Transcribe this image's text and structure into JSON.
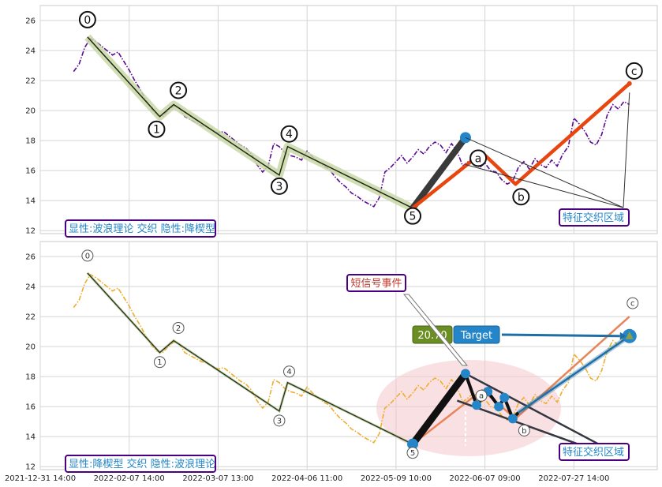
{
  "colors": {
    "panel1_price": "#5b0a91",
    "panel2_price": "#f0ad2d",
    "wave_fill": "#c9d7a8",
    "wave_line": "#1f2a10",
    "projection": "#e8450f",
    "impulse": "#3a3a3a",
    "pivot_dot": "#2486c8",
    "label_border": "#4b0082",
    "label_text_blue": "#2486c8",
    "label_text_red": "#c0392b",
    "target_value_bg": "#6b8e23",
    "target_bg": "#2486c8",
    "ellipse": "#f4c7cc"
  },
  "x_ticks": [
    "2021-12-31 14:00",
    "2022-02-07 14:00",
    "2022-03-07 13:00",
    "2022-04-06 11:00",
    "2022-05-09 10:00",
    "2022-06-07 09:00",
    "2022-07-27 14:00"
  ],
  "y_ticks": [
    "12",
    "14",
    "16",
    "18",
    "20",
    "22",
    "24",
    "26"
  ],
  "panel1": {
    "caption": "显性:波浪理论 交织 隐性:降楔型",
    "zone_label": "特征交织区域"
  },
  "panel2": {
    "caption": "显性:降楔型 交织 隐性:波浪理论",
    "zone_label": "特征交织区域",
    "signal_label": "短信号事件",
    "target_value": "20.70",
    "target_label": "Target"
  },
  "chart_data": [
    {
      "type": "line",
      "panel": "top",
      "ylim": [
        11.8,
        27
      ],
      "series": [
        {
          "role": "price",
          "x": [
            0,
            2,
            4,
            6,
            8,
            10,
            12,
            14,
            16,
            18,
            20,
            22,
            24,
            26,
            28,
            30,
            32,
            34,
            36,
            38,
            40,
            42,
            44,
            46,
            48,
            50,
            52,
            54,
            56,
            58,
            60,
            62,
            64,
            66,
            68,
            70,
            72,
            74,
            76,
            78,
            80,
            82,
            84,
            86,
            88,
            90,
            92,
            94,
            96,
            98,
            100,
            102,
            104,
            106,
            108,
            110,
            112,
            114,
            116,
            118,
            120,
            122,
            124,
            126,
            128,
            130,
            132,
            134,
            136,
            138,
            140,
            142,
            144,
            146,
            148,
            150,
            152,
            154,
            156,
            158,
            160,
            162,
            164,
            166,
            168,
            170,
            172,
            174,
            176,
            178,
            180,
            182,
            184,
            186,
            188,
            190,
            192,
            194,
            196,
            198,
            200
          ],
          "y": [
            22.6,
            23.1,
            24.2,
            24.8,
            24.6,
            24.3,
            24.0,
            23.7,
            23.9,
            23.3,
            22.7,
            22.0,
            21.4,
            20.7,
            20.1,
            19.7,
            19.6,
            20.0,
            20.3,
            20.2,
            19.6,
            19.4,
            19.2,
            19.0,
            18.9,
            18.7,
            18.5,
            18.6,
            18.3,
            18.0,
            17.7,
            17.5,
            17.1,
            16.4,
            15.9,
            16.3,
            17.8,
            17.6,
            17.2,
            17.0,
            16.9,
            16.7,
            17.3,
            16.9,
            16.6,
            16.3,
            16.1,
            15.6,
            15.2,
            14.9,
            14.5,
            14.3,
            14.0,
            13.8,
            13.6,
            14.2,
            15.9,
            16.2,
            16.6,
            17.0,
            16.5,
            16.9,
            17.4,
            17.1,
            17.6,
            17.9,
            17.7,
            17.2,
            17.8,
            17.3,
            16.3,
            16.6,
            16.9,
            16.2,
            16.5,
            16.0,
            15.9,
            15.4,
            15.1,
            15.3,
            16.2,
            16.6,
            16.1,
            16.8,
            16.4,
            16.2,
            16.7,
            16.3,
            17.1,
            17.6,
            19.5,
            19.1,
            18.6,
            17.9,
            17.7,
            18.4,
            19.7,
            20.4,
            20.1,
            20.6,
            20.4
          ]
        }
      ],
      "wave_points": [
        {
          "label": "0",
          "x": 5,
          "y": 24.9
        },
        {
          "label": "1",
          "x": 31,
          "y": 19.6
        },
        {
          "label": "2",
          "x": 36,
          "y": 20.4
        },
        {
          "label": "3",
          "x": 74,
          "y": 15.7
        },
        {
          "label": "4",
          "x": 77,
          "y": 17.6
        },
        {
          "label": "5",
          "x": 122,
          "y": 13.5
        }
      ],
      "projection_points": [
        {
          "label": "",
          "x": 122,
          "y": 13.5
        },
        {
          "label": "a",
          "x": 147,
          "y": 17.2
        },
        {
          "label": "b",
          "x": 159,
          "y": 15.1
        },
        {
          "label": "c",
          "x": 200,
          "y": 21.8
        }
      ],
      "impulse_line": {
        "from": {
          "x": 122,
          "y": 13.5
        },
        "to": {
          "x": 141,
          "y": 18.2
        }
      }
    },
    {
      "type": "line",
      "panel": "bottom",
      "ylim": [
        11.8,
        27
      ],
      "series": [
        {
          "role": "price",
          "x": [
            0,
            2,
            4,
            6,
            8,
            10,
            12,
            14,
            16,
            18,
            20,
            22,
            24,
            26,
            28,
            30,
            32,
            34,
            36,
            38,
            40,
            42,
            44,
            46,
            48,
            50,
            52,
            54,
            56,
            58,
            60,
            62,
            64,
            66,
            68,
            70,
            72,
            74,
            76,
            78,
            80,
            82,
            84,
            86,
            88,
            90,
            92,
            94,
            96,
            98,
            100,
            102,
            104,
            106,
            108,
            110,
            112,
            114,
            116,
            118,
            120,
            122,
            124,
            126,
            128,
            130,
            132,
            134,
            136,
            138,
            140,
            142,
            144,
            146,
            148,
            150,
            152,
            154,
            156,
            158,
            160,
            162,
            164,
            166,
            168,
            170,
            172,
            174,
            176,
            178,
            180,
            182,
            184,
            186,
            188,
            190,
            192,
            194,
            196,
            198,
            200
          ],
          "y": [
            22.6,
            23.1,
            24.2,
            24.8,
            24.6,
            24.3,
            24.0,
            23.7,
            23.9,
            23.3,
            22.7,
            22.0,
            21.4,
            20.7,
            20.1,
            19.7,
            19.6,
            20.0,
            20.3,
            20.2,
            19.6,
            19.4,
            19.2,
            19.0,
            18.9,
            18.7,
            18.5,
            18.6,
            18.3,
            18.0,
            17.7,
            17.5,
            17.1,
            16.4,
            15.9,
            16.3,
            17.8,
            17.6,
            17.2,
            17.0,
            16.9,
            16.7,
            17.3,
            16.9,
            16.6,
            16.3,
            16.1,
            15.6,
            15.2,
            14.9,
            14.5,
            14.3,
            14.0,
            13.8,
            13.6,
            14.2,
            15.9,
            16.2,
            16.6,
            17.0,
            16.5,
            16.9,
            17.4,
            17.1,
            17.6,
            17.9,
            17.7,
            17.2,
            17.8,
            17.3,
            16.3,
            16.6,
            16.9,
            16.2,
            16.5,
            16.0,
            15.9,
            15.4,
            15.1,
            15.3,
            16.2,
            16.6,
            16.1,
            16.8,
            16.4,
            16.2,
            16.7,
            16.3,
            17.1,
            17.6,
            19.5,
            19.1,
            18.6,
            17.9,
            17.7,
            18.4,
            19.7,
            20.4,
            20.1,
            20.6,
            20.4
          ]
        }
      ],
      "wave_points": [
        {
          "label": "0",
          "x": 5,
          "y": 24.9
        },
        {
          "label": "1",
          "x": 31,
          "y": 19.6
        },
        {
          "label": "2",
          "x": 36,
          "y": 20.4
        },
        {
          "label": "3",
          "x": 74,
          "y": 15.7
        },
        {
          "label": "4",
          "x": 77,
          "y": 17.6
        },
        {
          "label": "5",
          "x": 122,
          "y": 13.5
        }
      ],
      "wedge_points": [
        {
          "x": 122,
          "y": 13.5
        },
        {
          "x": 141,
          "y": 18.2
        },
        {
          "x": 145,
          "y": 16.1
        },
        {
          "x": 149,
          "y": 17.0
        },
        {
          "x": 153,
          "y": 16.0
        },
        {
          "x": 155,
          "y": 16.6
        },
        {
          "x": 158,
          "y": 15.2
        },
        {
          "x": 160,
          "y": 15.6
        }
      ],
      "projection_points": [
        {
          "label": "",
          "x": 122,
          "y": 13.5
        },
        {
          "label": "a",
          "x": 147,
          "y": 17.1
        },
        {
          "label": "b",
          "x": 159,
          "y": 15.2
        },
        {
          "label": "c",
          "x": 200,
          "y": 22.0
        }
      ],
      "target": {
        "x": 200,
        "y": 20.7
      }
    }
  ]
}
